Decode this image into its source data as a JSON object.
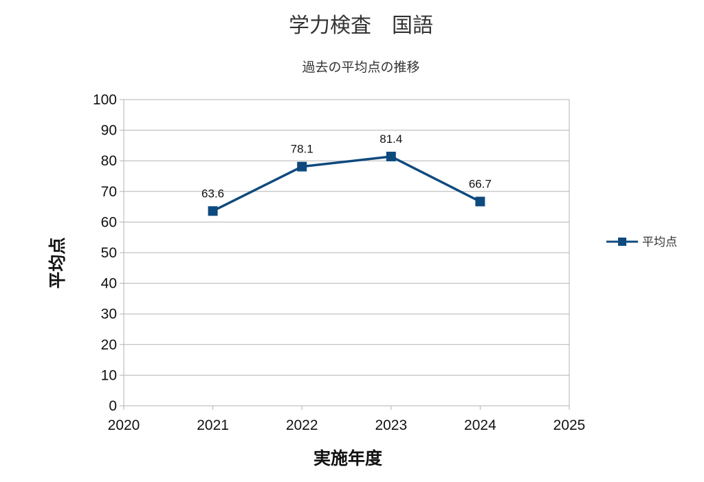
{
  "chart_data": {
    "type": "line",
    "title": "学力検査　国語",
    "subtitle": "過去の平均点の推移",
    "xlabel": "実施年度",
    "ylabel": "平均点",
    "xlim": [
      2020,
      2025
    ],
    "ylim": [
      0,
      100
    ],
    "x_ticks": [
      "2020",
      "2021",
      "2022",
      "2023",
      "2024",
      "2025"
    ],
    "y_ticks": [
      "0",
      "10",
      "20",
      "30",
      "40",
      "50",
      "60",
      "70",
      "80",
      "90",
      "100"
    ],
    "grid": true,
    "legend_position": "right",
    "series": [
      {
        "name": "平均点",
        "color": "#0e4a7e",
        "marker": "square",
        "x": [
          2021,
          2022,
          2023,
          2024
        ],
        "values": [
          63.6,
          78.1,
          81.4,
          66.7
        ],
        "labels": [
          "63.6",
          "78.1",
          "81.4",
          "66.7"
        ]
      }
    ]
  }
}
